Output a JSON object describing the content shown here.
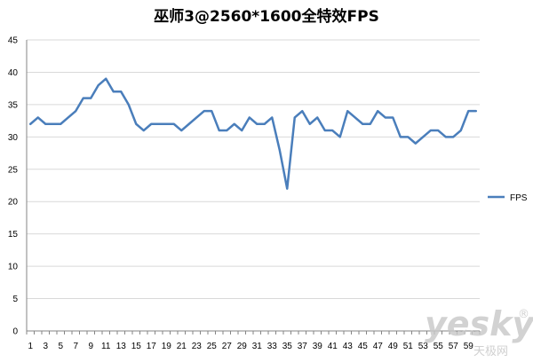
{
  "chart_data": {
    "type": "line",
    "title": "巫师3@2560*1600全特效FPS",
    "xlabel": "",
    "ylabel": "",
    "ylim": [
      0,
      45
    ],
    "yticks": [
      0,
      5,
      10,
      15,
      20,
      25,
      30,
      35,
      40,
      45
    ],
    "x": [
      1,
      2,
      3,
      4,
      5,
      6,
      7,
      8,
      9,
      10,
      11,
      12,
      13,
      14,
      15,
      16,
      17,
      18,
      19,
      20,
      21,
      22,
      23,
      24,
      25,
      26,
      27,
      28,
      29,
      30,
      31,
      32,
      33,
      34,
      35,
      36,
      37,
      38,
      39,
      40,
      41,
      42,
      43,
      44,
      45,
      46,
      47,
      48,
      49,
      50,
      51,
      52,
      53,
      54,
      55,
      56,
      57,
      58,
      59,
      60
    ],
    "xtick_labels": [
      "1",
      "3",
      "5",
      "7",
      "9",
      "11",
      "13",
      "15",
      "17",
      "19",
      "21",
      "23",
      "25",
      "27",
      "29",
      "31",
      "33",
      "35",
      "37",
      "39",
      "41",
      "43",
      "45",
      "47",
      "49",
      "51",
      "53",
      "55",
      "57",
      "59"
    ],
    "series": [
      {
        "name": "FPS",
        "color": "#4a7ebb",
        "values": [
          32,
          33,
          32,
          32,
          32,
          33,
          34,
          36,
          36,
          38,
          39,
          37,
          37,
          35,
          32,
          31,
          32,
          32,
          32,
          32,
          31,
          32,
          33,
          34,
          34,
          31,
          31,
          32,
          31,
          33,
          32,
          32,
          33,
          28,
          22,
          33,
          34,
          32,
          33,
          31,
          31,
          30,
          34,
          33,
          32,
          32,
          34,
          33,
          33,
          30,
          30,
          29,
          30,
          31,
          31,
          30,
          30,
          31,
          34,
          34
        ]
      }
    ],
    "grid": true,
    "legend_position": "right"
  },
  "watermark": {
    "brand": "yesky",
    "subtext": "天极网",
    "trademark": "®"
  }
}
